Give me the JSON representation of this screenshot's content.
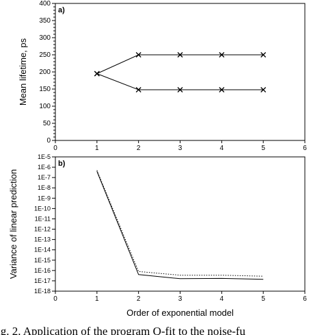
{
  "chart_data": [
    {
      "type": "scatter",
      "panel_label": "a)",
      "xlabel": "",
      "ylabel": "Mean lifetime, ps",
      "xlim": [
        0,
        6
      ],
      "ylim": [
        0,
        400
      ],
      "xticks": [
        "0",
        "1",
        "2",
        "3",
        "4",
        "5",
        "6"
      ],
      "yticks": [
        "0",
        "50",
        "100",
        "150",
        "200",
        "250",
        "300",
        "350",
        "400"
      ],
      "marker": "x",
      "connected": true,
      "series": [
        {
          "x": [
            1,
            2,
            3,
            4,
            5
          ],
          "y": [
            195,
            250,
            250,
            250,
            250
          ]
        },
        {
          "x": [
            1,
            2,
            3,
            4,
            5
          ],
          "y": [
            195,
            148,
            148,
            148,
            148
          ]
        }
      ]
    },
    {
      "type": "line",
      "panel_label": "b)",
      "xlabel": "Order of exponential model",
      "ylabel": "Variance of linear prediction",
      "xlim": [
        0,
        6
      ],
      "ylim": [
        1e-18,
        1e-05
      ],
      "yscale": "log",
      "xticks": [
        "0",
        "1",
        "2",
        "3",
        "4",
        "5",
        "6"
      ],
      "yticks": [
        "1E-18",
        "1E-17",
        "1E-16",
        "1E-15",
        "1E-14",
        "1E-13",
        "1E-12",
        "1E-11",
        "1E-10",
        "1E-9",
        "1E-8",
        "1E-7",
        "1E-6",
        "1E-5"
      ],
      "series": [
        {
          "style": "solid",
          "x": [
            1,
            2,
            3,
            4,
            5
          ],
          "y": [
            4e-07,
            4e-17,
            1.6e-17,
            1.7e-17,
            1.4e-17
          ]
        },
        {
          "style": "dotted",
          "x": [
            1,
            2,
            3,
            4,
            5
          ],
          "y": [
            5e-07,
            8e-17,
            3.5e-17,
            3.5e-17,
            2.8e-17
          ]
        }
      ]
    }
  ],
  "caption": "ig. 2. Application of the program Q-fit to the noise-fu"
}
